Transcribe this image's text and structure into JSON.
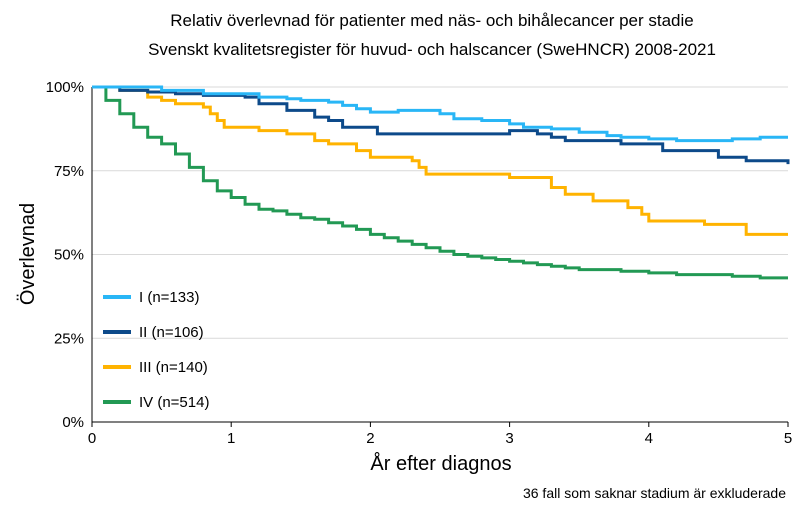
{
  "chart_data": {
    "type": "line",
    "title": "Relativ överlevnad för patienter med näs- och bihålecancer per stadie",
    "subtitle": "Svenskt kvalitetsregister för huvud- och halscancer (SweHNCR) 2008-2021",
    "xlabel": "År efter diagnos",
    "ylabel": "Överlevnad",
    "xlim": [
      0,
      5
    ],
    "ylim": [
      0,
      100
    ],
    "x_ticks": [
      "0",
      "1",
      "2",
      "3",
      "4",
      "5"
    ],
    "y_ticks": [
      "0%",
      "25%",
      "50%",
      "75%",
      "100%"
    ],
    "grid": "horizontal",
    "legend_position": "left-center",
    "footnote": "36 fall som saknar stadium är exkluderade",
    "series": [
      {
        "name": "I (n=133)",
        "color": "#29b6f6",
        "points": [
          [
            0,
            100
          ],
          [
            0.3,
            100
          ],
          [
            0.5,
            99
          ],
          [
            0.8,
            98
          ],
          [
            1.0,
            98
          ],
          [
            1.2,
            97
          ],
          [
            1.4,
            96.5
          ],
          [
            1.5,
            96
          ],
          [
            1.7,
            95.5
          ],
          [
            1.8,
            94.5
          ],
          [
            1.9,
            93.5
          ],
          [
            2.0,
            92.5
          ],
          [
            2.2,
            93
          ],
          [
            2.4,
            93
          ],
          [
            2.5,
            92
          ],
          [
            2.6,
            90.5
          ],
          [
            2.8,
            90
          ],
          [
            3.0,
            89
          ],
          [
            3.1,
            88
          ],
          [
            3.3,
            87.5
          ],
          [
            3.5,
            86.5
          ],
          [
            3.7,
            85.5
          ],
          [
            3.8,
            85
          ],
          [
            4.0,
            84.5
          ],
          [
            4.2,
            84
          ],
          [
            4.4,
            84
          ],
          [
            4.6,
            84.5
          ],
          [
            4.8,
            85
          ],
          [
            5.0,
            85
          ]
        ]
      },
      {
        "name": "II (n=106)",
        "color": "#0d4a8a",
        "points": [
          [
            0,
            100
          ],
          [
            0.2,
            99
          ],
          [
            0.4,
            98.5
          ],
          [
            0.6,
            98
          ],
          [
            0.8,
            97.5
          ],
          [
            1.0,
            97.5
          ],
          [
            1.1,
            97
          ],
          [
            1.2,
            95
          ],
          [
            1.4,
            93
          ],
          [
            1.6,
            91
          ],
          [
            1.7,
            90
          ],
          [
            1.8,
            88
          ],
          [
            2.0,
            88
          ],
          [
            2.05,
            86
          ],
          [
            2.2,
            86
          ],
          [
            2.5,
            86
          ],
          [
            2.8,
            86
          ],
          [
            3.0,
            87
          ],
          [
            3.2,
            86
          ],
          [
            3.3,
            85
          ],
          [
            3.4,
            84
          ],
          [
            3.6,
            84
          ],
          [
            3.8,
            83
          ],
          [
            4.0,
            83
          ],
          [
            4.1,
            81
          ],
          [
            4.3,
            81
          ],
          [
            4.5,
            79
          ],
          [
            4.7,
            78
          ],
          [
            4.9,
            78
          ],
          [
            5.0,
            77
          ]
        ]
      },
      {
        "name": "III (n=140)",
        "color": "#ffb300",
        "points": [
          [
            0,
            100
          ],
          [
            0.2,
            99
          ],
          [
            0.4,
            97
          ],
          [
            0.5,
            96
          ],
          [
            0.6,
            95
          ],
          [
            0.8,
            94
          ],
          [
            0.85,
            92
          ],
          [
            0.9,
            90
          ],
          [
            0.95,
            88
          ],
          [
            1.0,
            88
          ],
          [
            1.2,
            87
          ],
          [
            1.4,
            86
          ],
          [
            1.5,
            86
          ],
          [
            1.6,
            84
          ],
          [
            1.7,
            83
          ],
          [
            1.8,
            83
          ],
          [
            1.9,
            81
          ],
          [
            2.0,
            79
          ],
          [
            2.2,
            79
          ],
          [
            2.3,
            78
          ],
          [
            2.35,
            76
          ],
          [
            2.4,
            74
          ],
          [
            2.6,
            74
          ],
          [
            2.9,
            74
          ],
          [
            3.0,
            73
          ],
          [
            3.2,
            73
          ],
          [
            3.3,
            70
          ],
          [
            3.4,
            68
          ],
          [
            3.5,
            68
          ],
          [
            3.6,
            66
          ],
          [
            3.8,
            66
          ],
          [
            3.85,
            64
          ],
          [
            3.95,
            62
          ],
          [
            4.0,
            60
          ],
          [
            4.1,
            60
          ],
          [
            4.3,
            60
          ],
          [
            4.4,
            59
          ],
          [
            4.6,
            59
          ],
          [
            4.7,
            56
          ],
          [
            4.9,
            56
          ],
          [
            5.0,
            56
          ]
        ]
      },
      {
        "name": "IV (n=514)",
        "color": "#229954",
        "points": [
          [
            0,
            100
          ],
          [
            0.1,
            96
          ],
          [
            0.2,
            92
          ],
          [
            0.3,
            88
          ],
          [
            0.4,
            85
          ],
          [
            0.5,
            83
          ],
          [
            0.6,
            80
          ],
          [
            0.7,
            76
          ],
          [
            0.8,
            72
          ],
          [
            0.9,
            69
          ],
          [
            1.0,
            67
          ],
          [
            1.1,
            65
          ],
          [
            1.2,
            63.5
          ],
          [
            1.3,
            63
          ],
          [
            1.4,
            62
          ],
          [
            1.5,
            61
          ],
          [
            1.6,
            60.5
          ],
          [
            1.7,
            59.5
          ],
          [
            1.8,
            58.5
          ],
          [
            1.9,
            57.5
          ],
          [
            2.0,
            56
          ],
          [
            2.1,
            55
          ],
          [
            2.2,
            54
          ],
          [
            2.3,
            53
          ],
          [
            2.4,
            52
          ],
          [
            2.5,
            51
          ],
          [
            2.6,
            50
          ],
          [
            2.7,
            49.5
          ],
          [
            2.8,
            49
          ],
          [
            2.9,
            48.5
          ],
          [
            3.0,
            48
          ],
          [
            3.1,
            47.5
          ],
          [
            3.2,
            47
          ],
          [
            3.3,
            46.5
          ],
          [
            3.4,
            46
          ],
          [
            3.5,
            45.5
          ],
          [
            3.6,
            45.5
          ],
          [
            3.8,
            45
          ],
          [
            4.0,
            44.5
          ],
          [
            4.2,
            44
          ],
          [
            4.4,
            44
          ],
          [
            4.6,
            43.5
          ],
          [
            4.8,
            43
          ],
          [
            5.0,
            43
          ]
        ]
      }
    ]
  }
}
